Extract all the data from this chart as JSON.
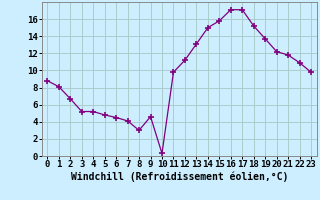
{
  "x": [
    0,
    1,
    2,
    3,
    4,
    5,
    6,
    7,
    8,
    9,
    10,
    11,
    12,
    13,
    14,
    15,
    16,
    17,
    18,
    19,
    20,
    21,
    22,
    23
  ],
  "y": [
    8.8,
    8.1,
    6.7,
    5.2,
    5.2,
    4.8,
    4.5,
    4.1,
    3.0,
    4.6,
    0.3,
    9.8,
    11.2,
    13.1,
    15.0,
    15.8,
    17.1,
    17.1,
    15.2,
    13.7,
    12.2,
    11.8,
    10.9,
    9.8
  ],
  "line_color": "#800080",
  "marker": "+",
  "marker_size": 4,
  "marker_linewidth": 1.2,
  "background_color": "#cceeff",
  "grid_color": "#aacccc",
  "xlabel": "Windchill (Refroidissement éolien,°C)",
  "xlabel_fontsize": 7,
  "tick_fontsize": 6.5,
  "xlim": [
    -0.5,
    23.5
  ],
  "ylim": [
    0,
    18
  ],
  "yticks": [
    0,
    2,
    4,
    6,
    8,
    10,
    12,
    14,
    16
  ],
  "xticks": [
    0,
    1,
    2,
    3,
    4,
    5,
    6,
    7,
    8,
    9,
    10,
    11,
    12,
    13,
    14,
    15,
    16,
    17,
    18,
    19,
    20,
    21,
    22,
    23
  ]
}
